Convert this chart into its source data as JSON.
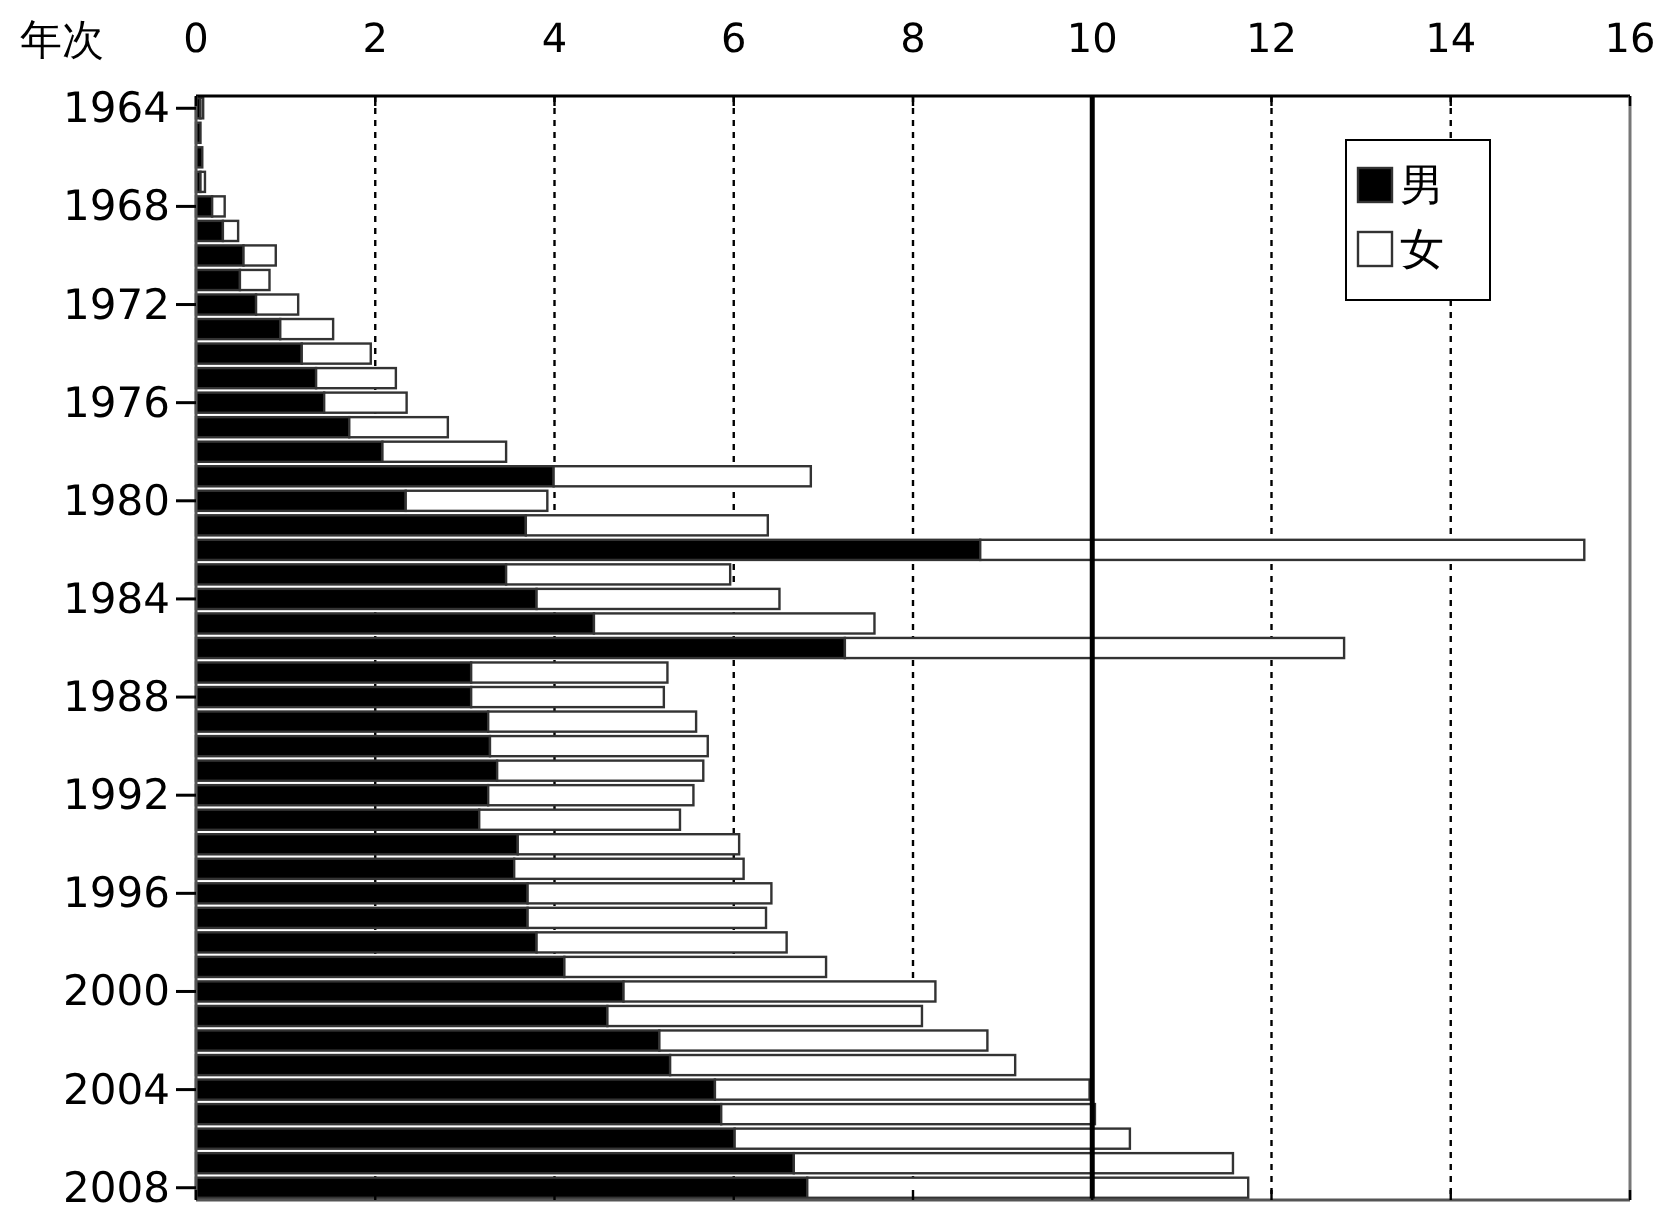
{
  "chart_data": {
    "type": "bar",
    "orientation": "horizontal",
    "stacked": true,
    "ylabel": "年次",
    "categories": [
      "1964",
      null,
      null,
      null,
      "1968",
      null,
      null,
      null,
      "1972",
      null,
      null,
      null,
      "1976",
      null,
      null,
      null,
      "1980",
      null,
      null,
      null,
      "1984",
      null,
      null,
      null,
      "1988",
      null,
      null,
      null,
      "1992",
      null,
      null,
      null,
      "1996",
      null,
      null,
      null,
      "2000",
      null,
      null,
      null,
      "2004",
      null,
      null,
      null,
      "2008"
    ],
    "series": [
      {
        "name": "男",
        "color": "#000000",
        "values": [
          0.05,
          0.05,
          0.07,
          0.05,
          0.18,
          0.3,
          0.53,
          0.49,
          0.67,
          0.94,
          1.18,
          1.34,
          1.43,
          1.71,
          2.08,
          3.99,
          2.34,
          3.68,
          8.75,
          3.46,
          3.8,
          4.44,
          7.24,
          3.07,
          3.07,
          3.26,
          3.28,
          3.36,
          3.26,
          3.16,
          3.59,
          3.55,
          3.7,
          3.7,
          3.8,
          4.11,
          4.77,
          4.59,
          5.17,
          5.29,
          5.79,
          5.86,
          6.01,
          6.67,
          6.82
        ]
      },
      {
        "name": "女",
        "color": "#ffffff",
        "values": [
          0.03,
          0,
          0,
          0.05,
          0.14,
          0.17,
          0.36,
          0.33,
          0.47,
          0.59,
          0.77,
          0.89,
          0.92,
          1.1,
          1.38,
          2.87,
          1.58,
          2.7,
          6.74,
          2.5,
          2.71,
          3.13,
          5.57,
          2.19,
          2.15,
          2.32,
          2.43,
          2.3,
          2.29,
          2.24,
          2.47,
          2.56,
          2.72,
          2.66,
          2.79,
          2.92,
          3.48,
          3.51,
          3.66,
          3.85,
          4.18,
          4.17,
          4.41,
          4.9,
          4.92
        ]
      }
    ],
    "xlim": [
      0,
      16
    ],
    "xticks": [
      0,
      2,
      4,
      6,
      8,
      10,
      12,
      14,
      16
    ],
    "grid": "x",
    "legend": "top right",
    "ref_lines": [
      {
        "axis": "x",
        "value": 10,
        "color": "#000000"
      }
    ]
  }
}
